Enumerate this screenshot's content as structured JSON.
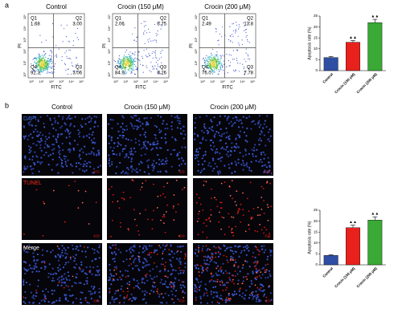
{
  "panel_labels": [
    "a",
    "b"
  ],
  "flow": {
    "x_label": "FITC",
    "y_label": "PI",
    "ticks": [
      "10⁰",
      "10¹",
      "10²",
      "10³",
      "10⁴",
      "10⁵"
    ],
    "plots": [
      {
        "title": "Control",
        "quadrants": [
          {
            "name": "Q1",
            "value": "1.68"
          },
          {
            "name": "Q2",
            "value": "3.00"
          },
          {
            "name": "Q4",
            "value": "92.3"
          },
          {
            "name": "Q3",
            "value": "3.06"
          }
        ]
      },
      {
        "title": "Crocin (150 μM)",
        "quadrants": [
          {
            "name": "Q1",
            "value": "2.06"
          },
          {
            "name": "Q2",
            "value": "6.75"
          },
          {
            "name": "Q4",
            "value": "84.9"
          },
          {
            "name": "Q3",
            "value": "6.26"
          }
        ]
      },
      {
        "title": "Crocin (200 μM)",
        "quadrants": [
          {
            "name": "Q1",
            "value": "2.49"
          },
          {
            "name": "Q2",
            "value": "13.8"
          },
          {
            "name": "Q4",
            "value": "76.0"
          },
          {
            "name": "Q3",
            "value": "7.78"
          }
        ]
      }
    ]
  },
  "tunel": {
    "titles": [
      "Control",
      "Crocin (150 μM)",
      "Crocin (200 μM)"
    ],
    "rows": [
      "DAPI",
      "TUNEL",
      "Merge"
    ]
  },
  "chart_data": [
    {
      "type": "bar",
      "ylabel": "Apoptosis rate (%)",
      "categories": [
        "Control",
        "Crocin (150 μM)",
        "Crocin (200 μM)"
      ],
      "values": [
        6,
        13,
        22
      ],
      "errors": [
        0.5,
        0.8,
        1.5
      ],
      "colors": [
        "#2e4fa3",
        "#e8211d",
        "#3aa935"
      ],
      "ylim": [
        0,
        25
      ],
      "yticks": [
        0,
        5,
        10,
        15,
        20,
        25
      ],
      "annotations": [
        {
          "x": "Crocin (150 μM)",
          "text": "▲▲"
        },
        {
          "x": "Crocin (200 μM)",
          "text": "▲▲"
        }
      ]
    },
    {
      "type": "bar",
      "ylabel": "Apoptosis rate (%)",
      "categories": [
        "Control",
        "Crocin (150 μM)",
        "Crocin (200 μM)"
      ],
      "values": [
        4.3,
        17,
        20.5
      ],
      "errors": [
        0.3,
        1.2,
        1.5
      ],
      "colors": [
        "#2e4fa3",
        "#e8211d",
        "#3aa935"
      ],
      "ylim": [
        0,
        25
      ],
      "yticks": [
        0,
        5,
        10,
        15,
        20,
        25
      ],
      "annotations": [
        {
          "x": "Crocin (150 μM)",
          "text": "▲▲"
        },
        {
          "x": "Crocin (200 μM)",
          "text": "▲▲"
        }
      ]
    }
  ]
}
